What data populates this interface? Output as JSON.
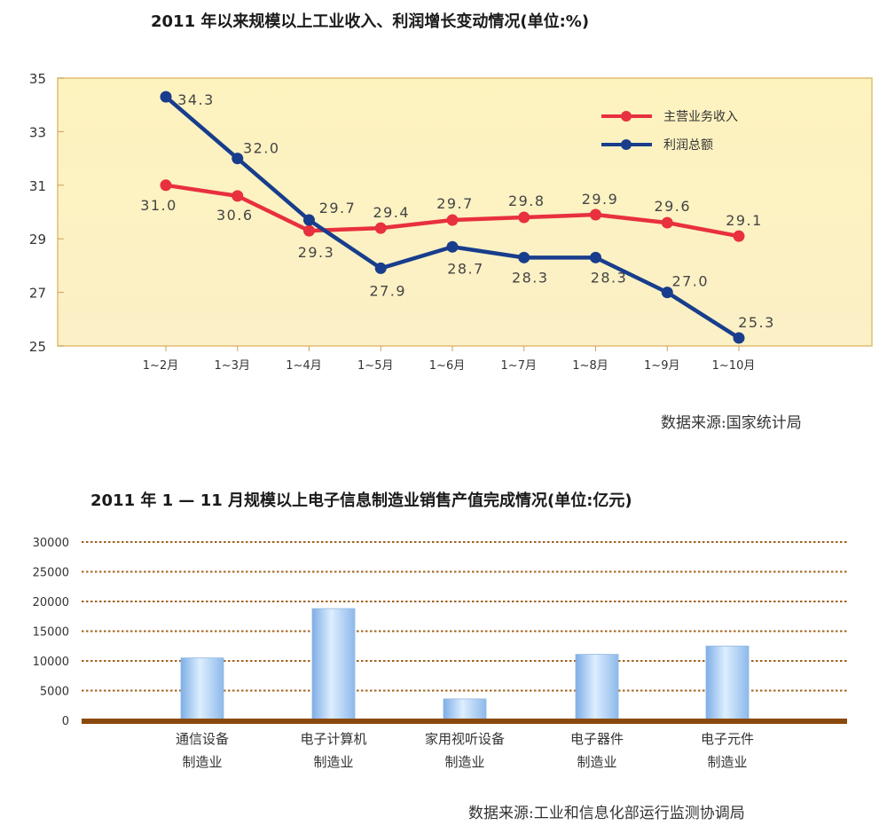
{
  "chart1": {
    "title": "2011 年以来规模以上工业收入、利润增长变动情况(单位:%)",
    "source": "数据来源:国家统计局",
    "chart_data": {
      "type": "line",
      "categories": [
        "1~2月",
        "1~3月",
        "1~4月",
        "1~5月",
        "1~6月",
        "1~7月",
        "1~8月",
        "1~9月",
        "1~10月"
      ],
      "ylim": [
        25,
        35
      ],
      "yticks": [
        25,
        27,
        29,
        31,
        33,
        35
      ],
      "grid": false,
      "legend_position": "top-right",
      "series": [
        {
          "name": "主营业务收入",
          "color": "#e8303f",
          "values": [
            31.0,
            30.6,
            29.3,
            29.4,
            29.7,
            29.8,
            29.9,
            29.6,
            29.1
          ],
          "labels": [
            "31.0",
            "30.6",
            "29.3",
            "29.4",
            "29.7",
            "29.8",
            "29.9",
            "29.6",
            "29.1"
          ]
        },
        {
          "name": "利润总额",
          "color": "#183d8c",
          "values": [
            34.3,
            32.0,
            29.7,
            27.9,
            28.7,
            28.3,
            28.3,
            27.0,
            25.3
          ],
          "labels": [
            "34.3",
            "32.0",
            "29.7",
            "27.9",
            "28.7",
            "28.3",
            "28.3",
            "27.0",
            "25.3"
          ]
        }
      ]
    }
  },
  "chart2": {
    "title": "2011 年 1 — 11 月规模以上电子信息制造业销售产值完成情况(单位:亿元)",
    "source": "数据来源:工业和信息化部运行监测协调局",
    "chart_data": {
      "type": "bar",
      "categories": [
        [
          "通信设备",
          "制造业"
        ],
        [
          "电子计算机",
          "制造业"
        ],
        [
          "家用视听设备",
          "制造业"
        ],
        [
          "电子器件",
          "制造业"
        ],
        [
          "电子元件",
          "制造业"
        ]
      ],
      "values": [
        10500,
        18800,
        3600,
        11100,
        12500
      ],
      "ylim": [
        0,
        30000
      ],
      "yticks": [
        0,
        5000,
        10000,
        15000,
        20000,
        25000,
        30000
      ],
      "grid": true,
      "bar_color": "#9cc4ee"
    }
  }
}
